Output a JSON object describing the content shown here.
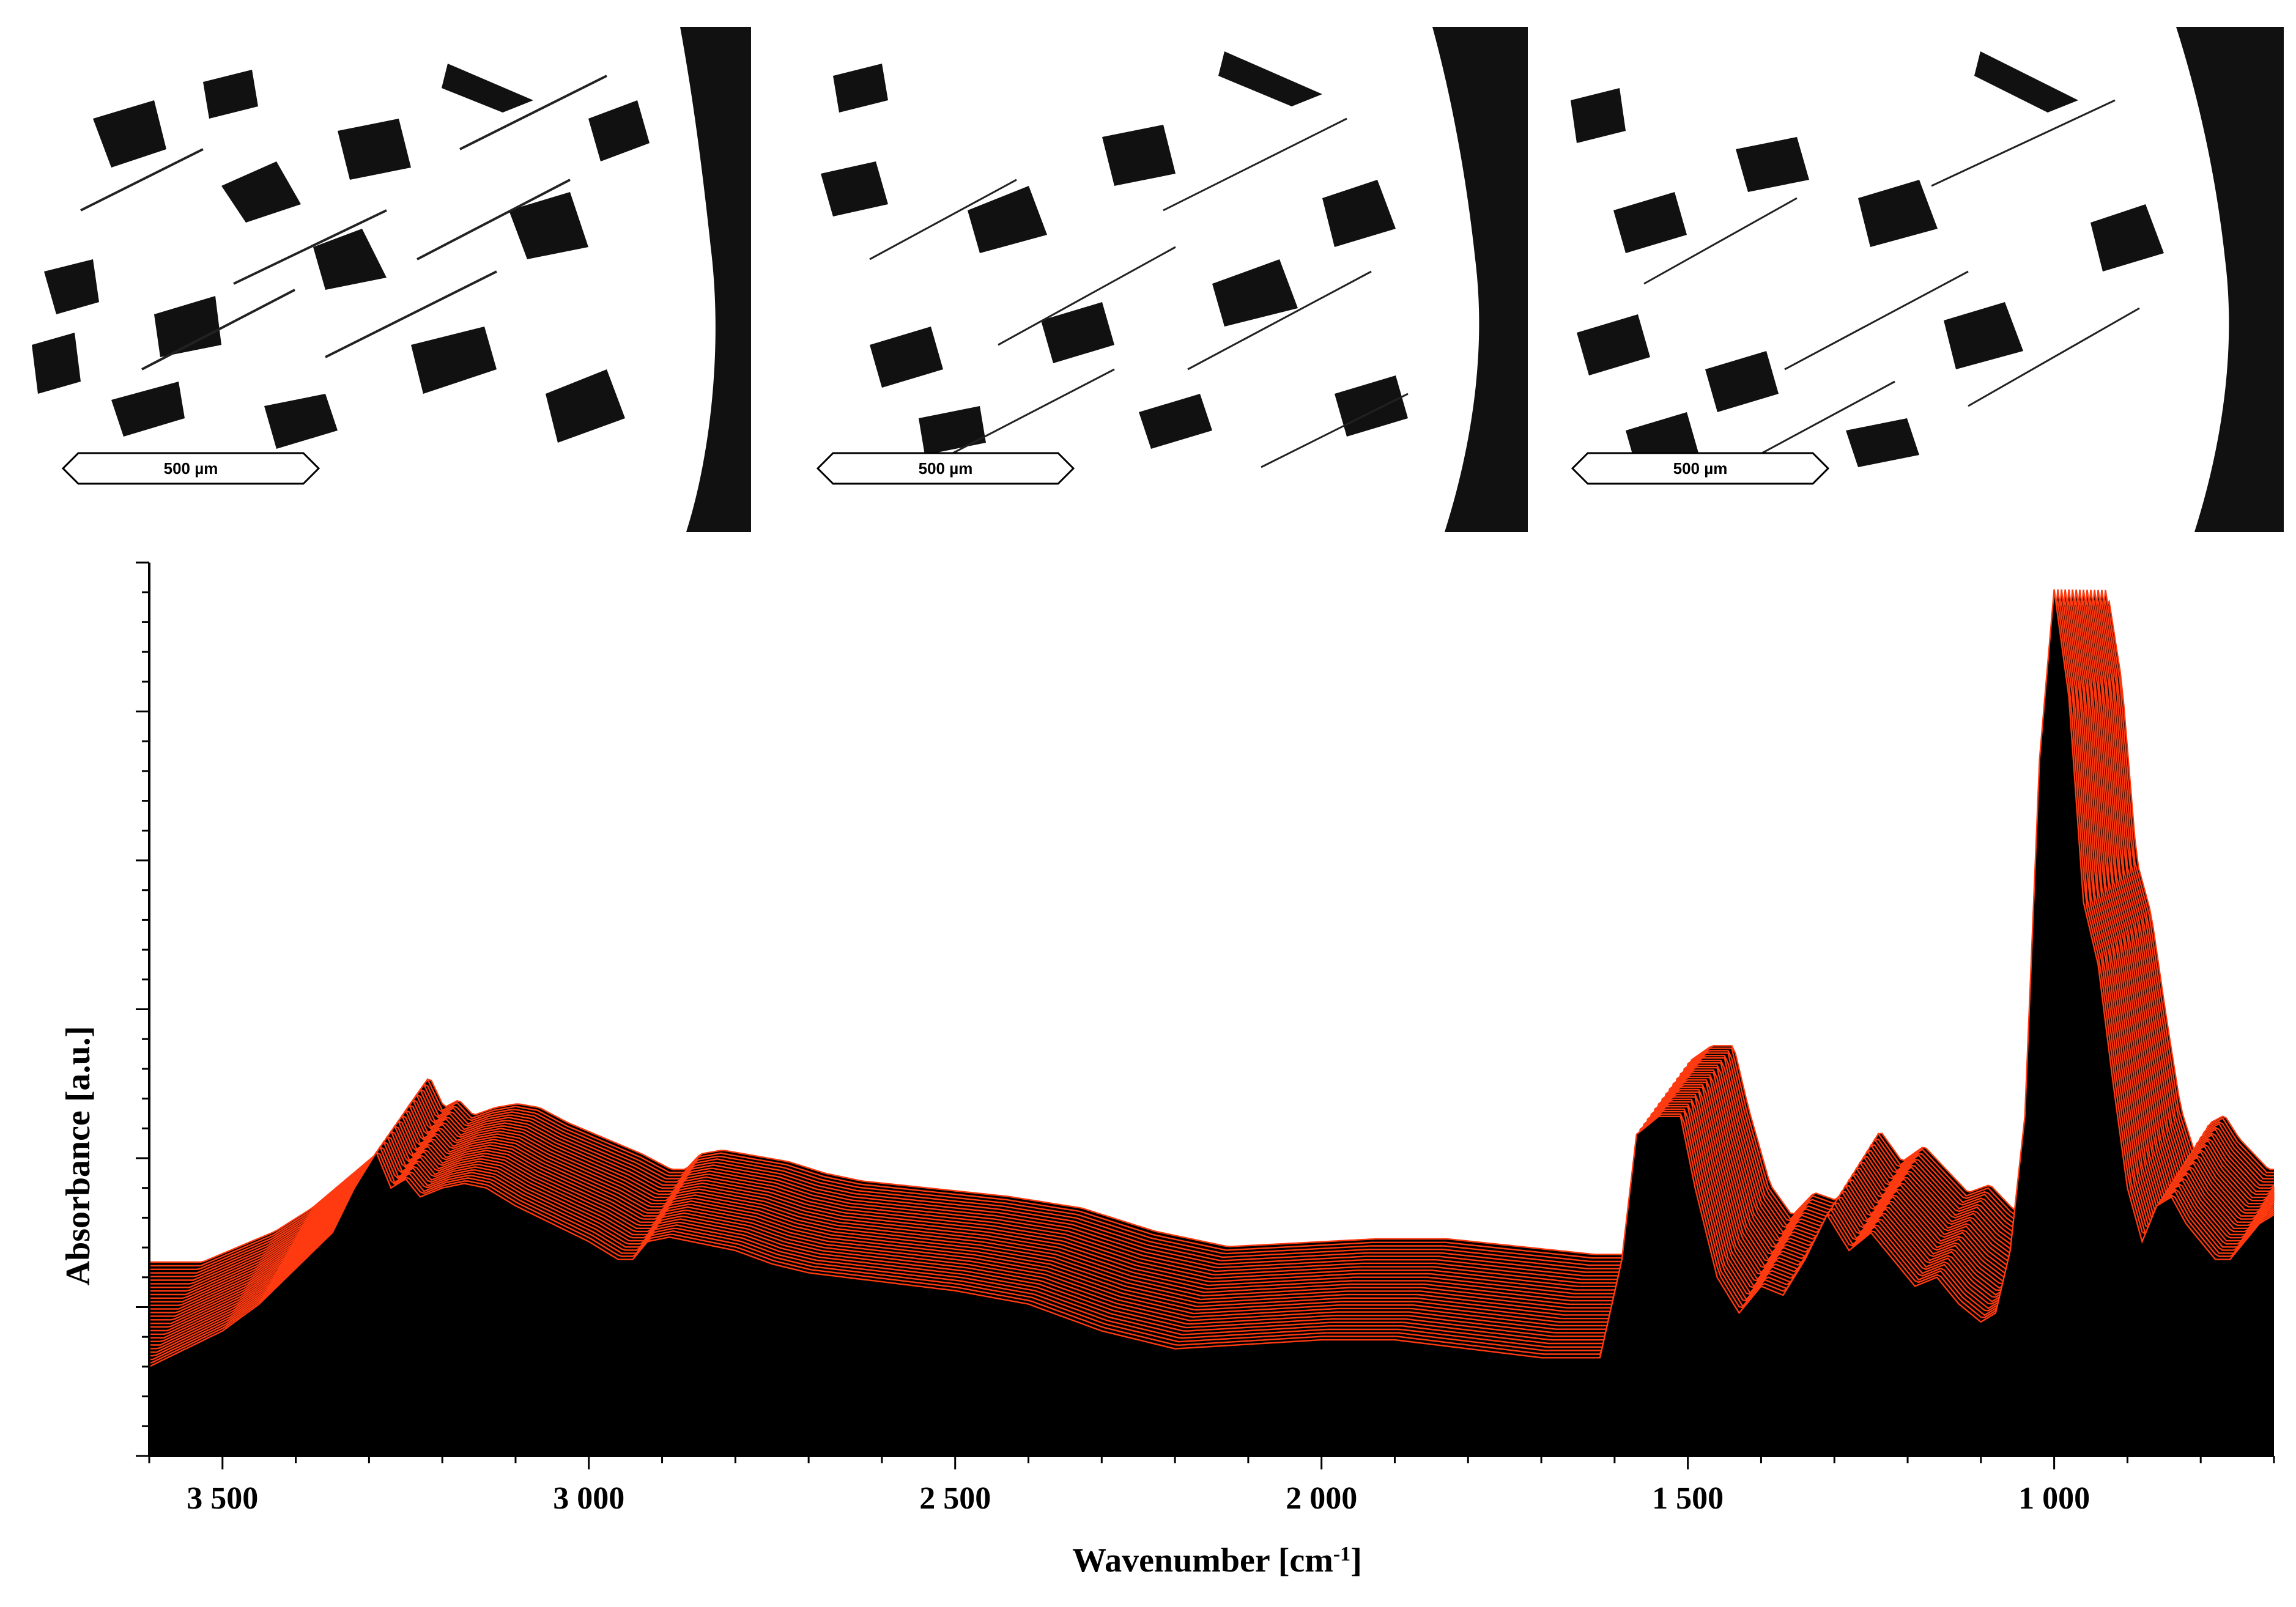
{
  "colors": {
    "spectrum_line": "#ff3a10",
    "fill": "#000000",
    "background": "#ffffff"
  },
  "micrographs": [
    {
      "scale_label": "500 µm"
    },
    {
      "scale_label": "500 µm"
    },
    {
      "scale_label": "500 µm"
    }
  ],
  "chart_data": {
    "type": "area",
    "title": "",
    "xlabel": "Wavenumber [cm",
    "xlabel_sup": "-1",
    "xlabel_suffix": "]",
    "ylabel": "Absorbance [a.u.]",
    "x_reversed": true,
    "xlim": [
      3600,
      700
    ],
    "ylim": [
      0,
      1
    ],
    "x_ticks": [
      3500,
      3000,
      2500,
      2000,
      1500,
      1000
    ],
    "x_tick_labels": [
      "3 500",
      "3 000",
      "2 500",
      "2 000",
      "1 500",
      "1 000"
    ],
    "y_tick_labels_shown": false,
    "series_count": 30,
    "series_note": "stacked waterfall of spectra",
    "reference_spectrum": {
      "x": [
        3600,
        3500,
        3450,
        3400,
        3350,
        3320,
        3290,
        3270,
        3250,
        3230,
        3200,
        3170,
        3140,
        3100,
        3050,
        3000,
        2960,
        2940,
        2920,
        2890,
        2860,
        2830,
        2800,
        2750,
        2700,
        2600,
        2500,
        2400,
        2300,
        2200,
        2100,
        2000,
        1900,
        1800,
        1700,
        1620,
        1590,
        1570,
        1540,
        1510,
        1490,
        1460,
        1430,
        1400,
        1370,
        1340,
        1310,
        1280,
        1250,
        1220,
        1190,
        1160,
        1130,
        1100,
        1080,
        1060,
        1040,
        1020,
        1000,
        980,
        960,
        940,
        920,
        900,
        880,
        860,
        840,
        820,
        800,
        780,
        760,
        740,
        720,
        700
      ],
      "y": [
        0.1,
        0.14,
        0.17,
        0.21,
        0.25,
        0.3,
        0.34,
        0.3,
        0.31,
        0.29,
        0.3,
        0.305,
        0.3,
        0.28,
        0.26,
        0.24,
        0.22,
        0.22,
        0.24,
        0.245,
        0.24,
        0.235,
        0.23,
        0.215,
        0.205,
        0.195,
        0.185,
        0.17,
        0.14,
        0.12,
        0.125,
        0.13,
        0.13,
        0.12,
        0.11,
        0.11,
        0.22,
        0.36,
        0.38,
        0.38,
        0.3,
        0.2,
        0.16,
        0.19,
        0.18,
        0.22,
        0.27,
        0.23,
        0.25,
        0.22,
        0.19,
        0.2,
        0.17,
        0.15,
        0.16,
        0.23,
        0.38,
        0.78,
        0.97,
        0.85,
        0.62,
        0.55,
        0.42,
        0.3,
        0.24,
        0.28,
        0.29,
        0.26,
        0.24,
        0.22,
        0.22,
        0.24,
        0.26,
        0.27
      ]
    }
  }
}
